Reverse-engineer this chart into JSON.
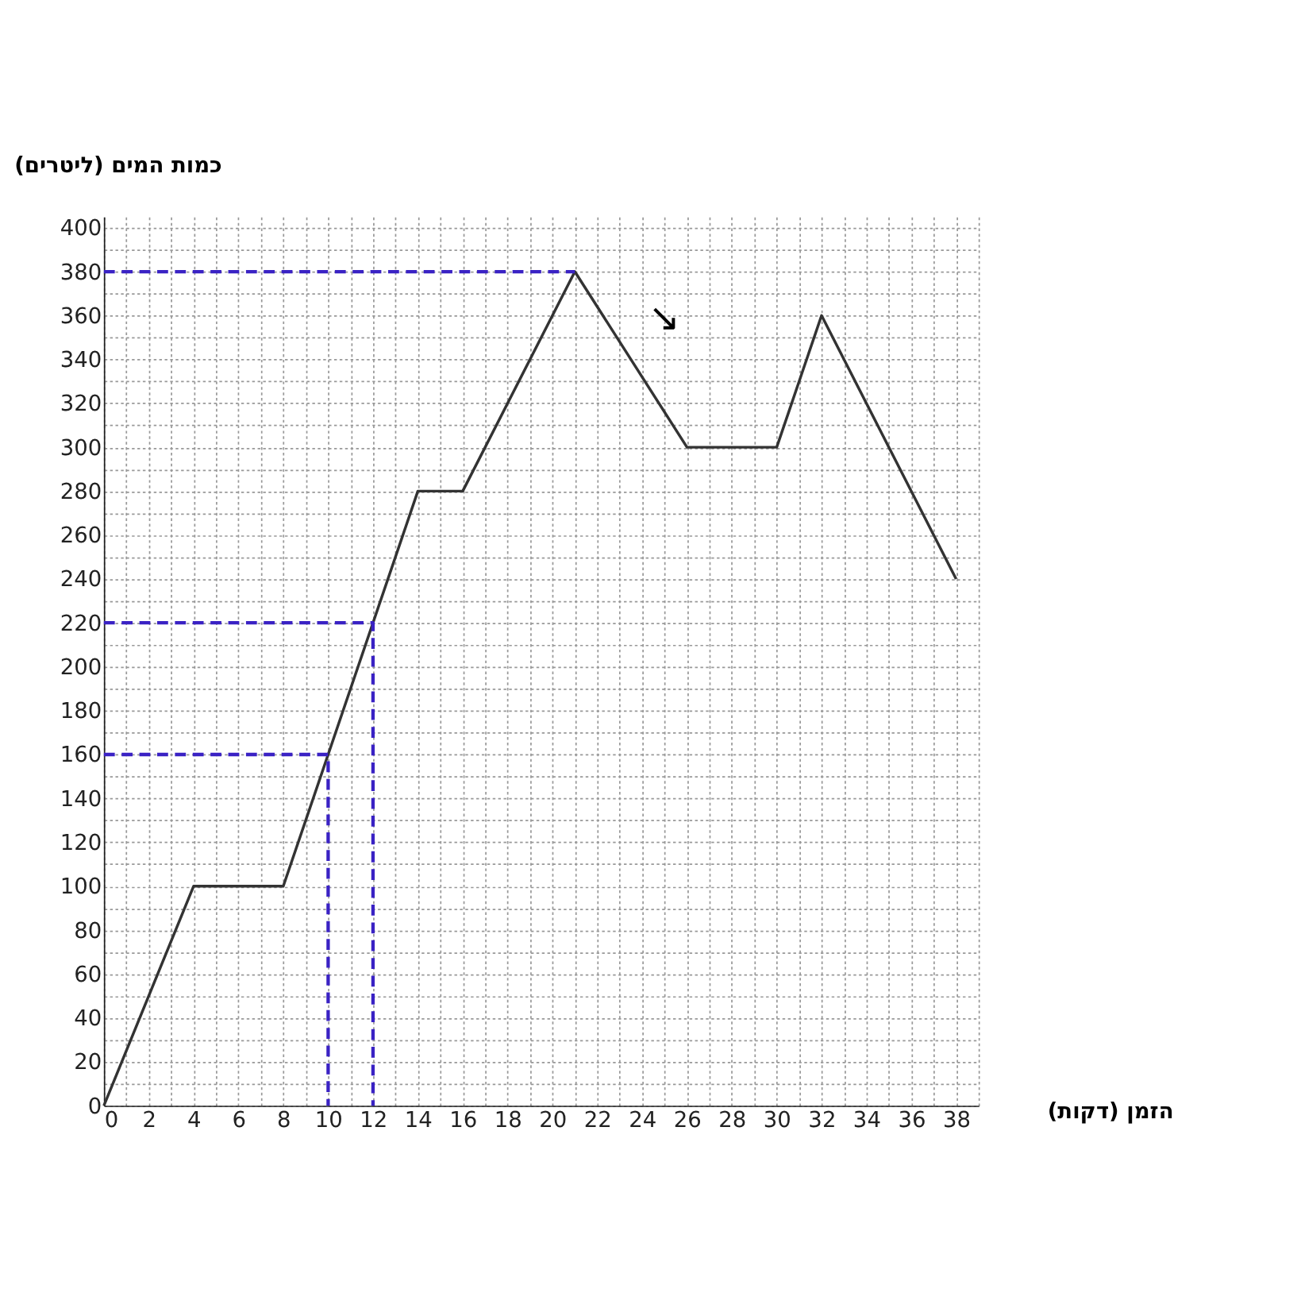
{
  "chart_data": {
    "type": "line",
    "xlabel": "הזמן (דקות)",
    "ylabel": "כמות המים (ליטרים)",
    "series": [
      {
        "color": "#333333",
        "x": [
          0,
          4,
          8,
          14,
          16,
          21,
          26,
          30,
          32,
          38
        ],
        "values": [
          0,
          100,
          100,
          280,
          280,
          380,
          300,
          300,
          360,
          240
        ],
        "line_style": "solid"
      },
      {
        "color": "#3a22c4",
        "x": [
          0,
          21
        ],
        "values": [
          380,
          380
        ],
        "line_style": "dashed"
      },
      {
        "color": "#3a22c4",
        "x": [
          0,
          12,
          12
        ],
        "values": [
          220,
          220,
          0
        ],
        "line_style": "dashed"
      },
      {
        "color": "#3a22c4",
        "x": [
          0,
          10,
          10
        ],
        "values": [
          160,
          160,
          0
        ],
        "line_style": "dashed"
      }
    ],
    "annotations": [
      "↘"
    ],
    "xlim": [
      0,
      39
    ],
    "ylim": [
      0,
      405
    ],
    "xticks": [
      0,
      {
        "value": 1,
        "label": null
      },
      2,
      {
        "value": 3,
        "label": null
      },
      4,
      {
        "value": 5,
        "label": null
      },
      6,
      {
        "value": 7,
        "label": null
      },
      8,
      {
        "value": 9,
        "label": null
      },
      10,
      {
        "value": 11,
        "label": null
      },
      12,
      {
        "value": 13,
        "label": null
      },
      14,
      {
        "value": 15,
        "label": null
      },
      16,
      {
        "value": 17,
        "label": null
      },
      18,
      {
        "value": 19,
        "label": null
      },
      20,
      {
        "value": 21,
        "label": null
      },
      22,
      {
        "value": 23,
        "label": null
      },
      24,
      {
        "value": 25,
        "label": null
      },
      26,
      {
        "value": 27,
        "label": null
      },
      28,
      {
        "value": 29,
        "label": null
      },
      30,
      {
        "value": 31,
        "label": null
      },
      32,
      {
        "value": 33,
        "label": null
      },
      34,
      {
        "value": 35,
        "label": null
      },
      36,
      {
        "value": 37,
        "label": null
      },
      38,
      {
        "value": 39,
        "label": null
      }
    ],
    "yticks": [
      0,
      {
        "value": 10,
        "label": null
      },
      20,
      {
        "value": 30,
        "label": null
      },
      40,
      {
        "value": 50,
        "label": null
      },
      60,
      {
        "value": 70,
        "label": null
      },
      80,
      {
        "value": 90,
        "label": null
      },
      100,
      {
        "value": 110,
        "label": null
      },
      120,
      {
        "value": 130,
        "label": null
      },
      140,
      {
        "value": 150,
        "label": null
      },
      160,
      {
        "value": 170,
        "label": null
      },
      180,
      {
        "value": 190,
        "label": null
      },
      200,
      {
        "value": 210,
        "label": null
      },
      220,
      {
        "value": 230,
        "label": null
      },
      240,
      {
        "value": 250,
        "label": null
      },
      260,
      {
        "value": 270,
        "label": null
      },
      280,
      {
        "value": 290,
        "label": null
      },
      300,
      {
        "value": 310,
        "label": null
      },
      320,
      {
        "value": 330,
        "label": null
      },
      340,
      {
        "value": 350,
        "label": null
      },
      360,
      {
        "value": 370,
        "label": null
      },
      380,
      {
        "value": 390,
        "label": null
      },
      400
    ],
    "grid": true,
    "marker": "none"
  }
}
